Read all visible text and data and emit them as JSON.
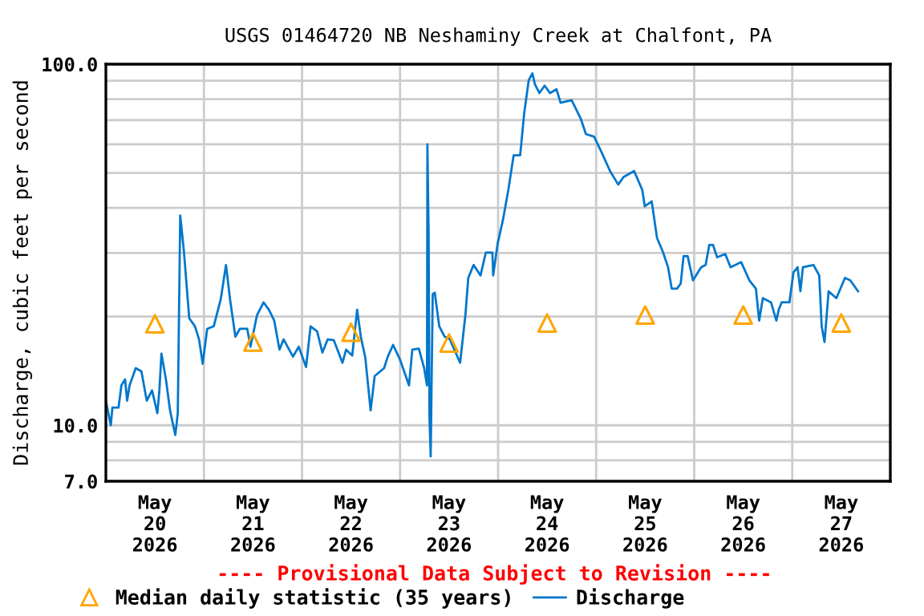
{
  "chart_data": {
    "type": "line",
    "title": "USGS 01464720 NB Neshaminy Creek at Chalfont, PA",
    "ylabel": "Discharge, cubic feet per second",
    "log": "y",
    "grid": true,
    "legend": "bottom",
    "annotations": [
      "---- Provisional Data Subject to Revision ----"
    ],
    "xlim": [
      "2026-05-20T00:00",
      "2026-05-28T00:00"
    ],
    "xticks": [
      {
        "value": "2026-05-20T12:00",
        "label": "May\n20\n2026"
      },
      {
        "value": "2026-05-21T00:00",
        "label": null
      },
      {
        "value": "2026-05-21T12:00",
        "label": "May\n21\n2026"
      },
      {
        "value": "2026-05-22T00:00",
        "label": null
      },
      {
        "value": "2026-05-22T12:00",
        "label": "May\n22\n2026"
      },
      {
        "value": "2026-05-23T00:00",
        "label": null
      },
      {
        "value": "2026-05-23T12:00",
        "label": "May\n23\n2026"
      },
      {
        "value": "2026-05-24T00:00",
        "label": null
      },
      {
        "value": "2026-05-24T12:00",
        "label": "May\n24\n2026"
      },
      {
        "value": "2026-05-25T00:00",
        "label": null
      },
      {
        "value": "2026-05-25T12:00",
        "label": "May\n25\n2026"
      },
      {
        "value": "2026-05-26T00:00",
        "label": null
      },
      {
        "value": "2026-05-26T12:00",
        "label": "May\n26\n2026"
      },
      {
        "value": "2026-05-27T00:00",
        "label": null
      },
      {
        "value": "2026-05-27T12:00",
        "label": "May\n27\n2026"
      }
    ],
    "ylim": [
      7,
      100
    ],
    "yticks": [
      {
        "value": 7,
        "label": "7.0"
      },
      {
        "value": 8,
        "label": null
      },
      {
        "value": 9,
        "label": null
      },
      {
        "value": 10,
        "label": "10.0"
      },
      {
        "value": 20,
        "label": null
      },
      {
        "value": 30,
        "label": null
      },
      {
        "value": 40,
        "label": null
      },
      {
        "value": 50,
        "label": null
      },
      {
        "value": 60,
        "label": null
      },
      {
        "value": 70,
        "label": null
      },
      {
        "value": 80,
        "label": null
      },
      {
        "value": 90,
        "label": null
      },
      {
        "value": 100,
        "label": "100.0"
      }
    ],
    "series": [
      {
        "name": "Median daily statistic (35 years)",
        "type": "scatter",
        "marker": "triangle",
        "color": "#ffa500",
        "x": [
          "2026-05-20T12:00",
          "2026-05-21T12:00",
          "2026-05-22T12:00",
          "2026-05-23T12:00",
          "2026-05-24T12:00",
          "2026-05-25T12:00",
          "2026-05-26T12:00",
          "2026-05-27T12:00"
        ],
        "values": [
          19.1,
          17.0,
          18.1,
          16.9,
          19.2,
          20.2,
          20.2,
          19.2
        ]
      },
      {
        "name": "Discharge",
        "color": "#0077cc",
        "line_style": "solid",
        "x": [
          "2026-05-20T00:00",
          "2026-05-20T01:12",
          "2026-05-20T01:36",
          "2026-05-20T03:06",
          "2026-05-20T03:48",
          "2026-05-20T04:42",
          "2026-05-20T05:12",
          "2026-05-20T05:48",
          "2026-05-20T07:18",
          "2026-05-20T08:42",
          "2026-05-20T10:00",
          "2026-05-20T11:18",
          "2026-05-20T12:36",
          "2026-05-20T13:06",
          "2026-05-20T13:36",
          "2026-05-20T14:42",
          "2026-05-20T15:42",
          "2026-05-20T17:00",
          "2026-05-20T17:36",
          "2026-05-20T18:12",
          "2026-05-20T19:06",
          "2026-05-20T20:24",
          "2026-05-20T21:48",
          "2026-05-20T22:48",
          "2026-05-20T23:42",
          "2026-05-21T00:48",
          "2026-05-21T02:24",
          "2026-05-21T04:06",
          "2026-05-21T05:24",
          "2026-05-21T06:24",
          "2026-05-21T07:42",
          "2026-05-21T08:48",
          "2026-05-21T10:36",
          "2026-05-21T11:24",
          "2026-05-21T13:00",
          "2026-05-21T14:36",
          "2026-05-21T15:54",
          "2026-05-21T17:12",
          "2026-05-21T18:30",
          "2026-05-21T19:30",
          "2026-05-21T21:48",
          "2026-05-21T23:12",
          "2026-05-22T01:00",
          "2026-05-22T02:06",
          "2026-05-22T03:42",
          "2026-05-22T05:00",
          "2026-05-22T06:18",
          "2026-05-22T07:48",
          "2026-05-22T09:54",
          "2026-05-22T10:48",
          "2026-05-22T12:18",
          "2026-05-22T13:30",
          "2026-05-22T14:24",
          "2026-05-22T15:30",
          "2026-05-22T16:48",
          "2026-05-22T17:48",
          "2026-05-22T20:06",
          "2026-05-22T21:00",
          "2026-05-22T22:18",
          "2026-05-23T00:00",
          "2026-05-23T02:12",
          "2026-05-23T03:00",
          "2026-05-23T04:36",
          "2026-05-23T05:54",
          "2026-05-23T06:36",
          "2026-05-23T06:42",
          "2026-05-23T07:00",
          "2026-05-23T07:12",
          "2026-05-23T07:30",
          "2026-05-23T08:00",
          "2026-05-23T08:30",
          "2026-05-23T09:36",
          "2026-05-23T10:54",
          "2026-05-23T12:12",
          "2026-05-23T14:42",
          "2026-05-23T16:00",
          "2026-05-23T16:42",
          "2026-05-23T18:00",
          "2026-05-23T19:42",
          "2026-05-23T21:00",
          "2026-05-23T22:36",
          "2026-05-23T22:48",
          "2026-05-23T23:54",
          "2026-05-24T01:12",
          "2026-05-24T02:30",
          "2026-05-24T03:48",
          "2026-05-24T05:24",
          "2026-05-24T06:24",
          "2026-05-24T07:30",
          "2026-05-24T08:24",
          "2026-05-24T09:00",
          "2026-05-24T10:06",
          "2026-05-24T11:24",
          "2026-05-24T12:42",
          "2026-05-24T14:18",
          "2026-05-24T15:18",
          "2026-05-24T18:00",
          "2026-05-24T20:12",
          "2026-05-24T21:30",
          "2026-05-24T23:30",
          "2026-05-25T01:24",
          "2026-05-25T03:24",
          "2026-05-25T05:24",
          "2026-05-25T06:42",
          "2026-05-25T09:18",
          "2026-05-25T11:18",
          "2026-05-25T11:54",
          "2026-05-25T13:36",
          "2026-05-25T14:54",
          "2026-05-25T16:18",
          "2026-05-25T17:36",
          "2026-05-25T18:30",
          "2026-05-25T19:48",
          "2026-05-25T20:42",
          "2026-05-25T21:24",
          "2026-05-25T22:24",
          "2026-05-25T23:42",
          "2026-05-26T01:42",
          "2026-05-26T02:48",
          "2026-05-26T03:42",
          "2026-05-26T04:36",
          "2026-05-26T05:36",
          "2026-05-26T07:36",
          "2026-05-26T08:54",
          "2026-05-26T11:30",
          "2026-05-26T13:30",
          "2026-05-26T15:06",
          "2026-05-26T15:54",
          "2026-05-26T16:48",
          "2026-05-26T18:48",
          "2026-05-26T20:06",
          "2026-05-26T20:42",
          "2026-05-26T21:24",
          "2026-05-26T23:18",
          "2026-05-27T00:18",
          "2026-05-27T01:18",
          "2026-05-27T02:00",
          "2026-05-27T02:36",
          "2026-05-27T05:12",
          "2026-05-27T06:36",
          "2026-05-27T07:12",
          "2026-05-27T07:54",
          "2026-05-27T08:54",
          "2026-05-27T10:48",
          "2026-05-27T12:54",
          "2026-05-27T14:12",
          "2026-05-27T16:06"
        ],
        "values": [
          11.7,
          10.0,
          11.2,
          11.2,
          12.9,
          13.4,
          11.7,
          12.9,
          14.4,
          14.1,
          11.7,
          12.5,
          10.8,
          12.5,
          15.8,
          13.4,
          11.0,
          9.4,
          10.8,
          38.1,
          30.3,
          19.8,
          18.8,
          17.3,
          14.8,
          18.5,
          18.8,
          22.3,
          27.8,
          22.3,
          17.6,
          18.5,
          18.5,
          16.5,
          20.2,
          21.9,
          20.9,
          19.5,
          16.2,
          17.3,
          15.5,
          16.5,
          14.5,
          18.8,
          18.2,
          15.9,
          17.3,
          17.2,
          14.9,
          16.2,
          15.6,
          20.9,
          17.6,
          15.4,
          11.0,
          13.7,
          14.4,
          15.5,
          16.7,
          15.2,
          12.9,
          16.2,
          16.3,
          14.4,
          12.9,
          60.0,
          33.5,
          10.6,
          8.2,
          23.1,
          23.3,
          18.8,
          17.6,
          17.3,
          14.9,
          20.2,
          25.6,
          27.8,
          26.0,
          30.1,
          30.1,
          26.0,
          31.9,
          37.1,
          44.8,
          55.9,
          55.9,
          73.3,
          90.3,
          94.3,
          88.1,
          83.2,
          87.2,
          83.2,
          85.2,
          78.2,
          79.5,
          70.8,
          64.0,
          63.0,
          56.8,
          50.6,
          46.4,
          48.7,
          50.6,
          44.8,
          40.4,
          41.7,
          33.0,
          30.3,
          27.4,
          23.9,
          23.9,
          24.7,
          29.4,
          29.4,
          25.2,
          27.4,
          27.8,
          31.6,
          31.6,
          29.2,
          29.8,
          27.4,
          28.3,
          25.2,
          23.9,
          19.5,
          22.5,
          21.9,
          19.5,
          20.9,
          21.9,
          21.9,
          26.5,
          27.4,
          23.5,
          27.4,
          27.8,
          26.0,
          18.8,
          17.0,
          23.5,
          22.5,
          25.6,
          25.2,
          23.5
        ]
      }
    ]
  }
}
